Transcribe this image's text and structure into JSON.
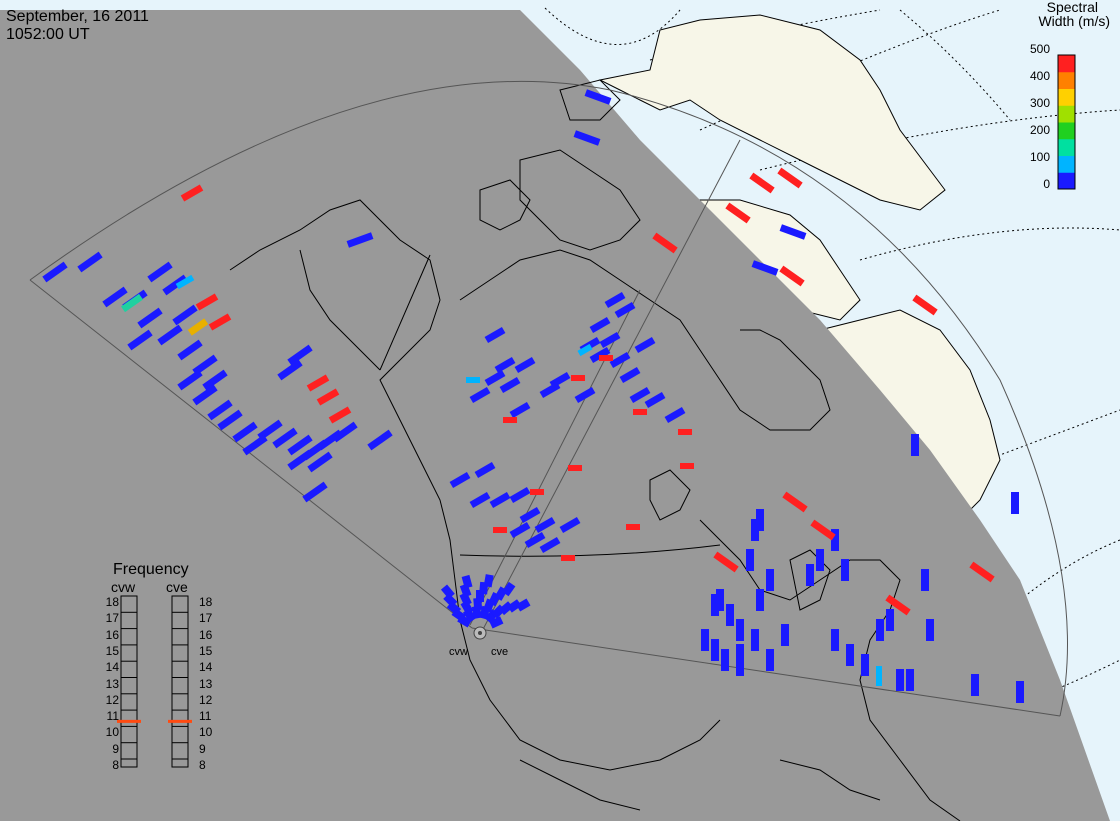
{
  "header": {
    "date": "September, 16 2011",
    "time": "1052:00 UT"
  },
  "colorbar": {
    "title_line1": "Spectral",
    "title_line2": "Width (m/s)",
    "ticks": [
      "500",
      "400",
      "300",
      "200",
      "100",
      "0"
    ],
    "range": [
      0,
      500
    ],
    "colors": [
      "#1a1aff",
      "#00b4ff",
      "#00e0a0",
      "#20d020",
      "#a0e000",
      "#ffd000",
      "#ff8000",
      "#ff2020"
    ]
  },
  "frequency": {
    "title": "Frequency",
    "radars": [
      "cvw",
      "cve"
    ],
    "scale": [
      "18",
      "17",
      "16",
      "15",
      "14",
      "13",
      "12",
      "11",
      "10",
      "9",
      "8"
    ],
    "marker_value": 10.8,
    "marker_color": "#ff4a10"
  },
  "sites": {
    "west": "cvw",
    "east": "cve"
  },
  "colors": {
    "night": "#999999",
    "ocean_day": "#e6f4fb",
    "land_day": "#f7f6e8",
    "low_width": "#1a1aff",
    "high_width": "#ff2020",
    "mid_width": "#00b4ff"
  }
}
